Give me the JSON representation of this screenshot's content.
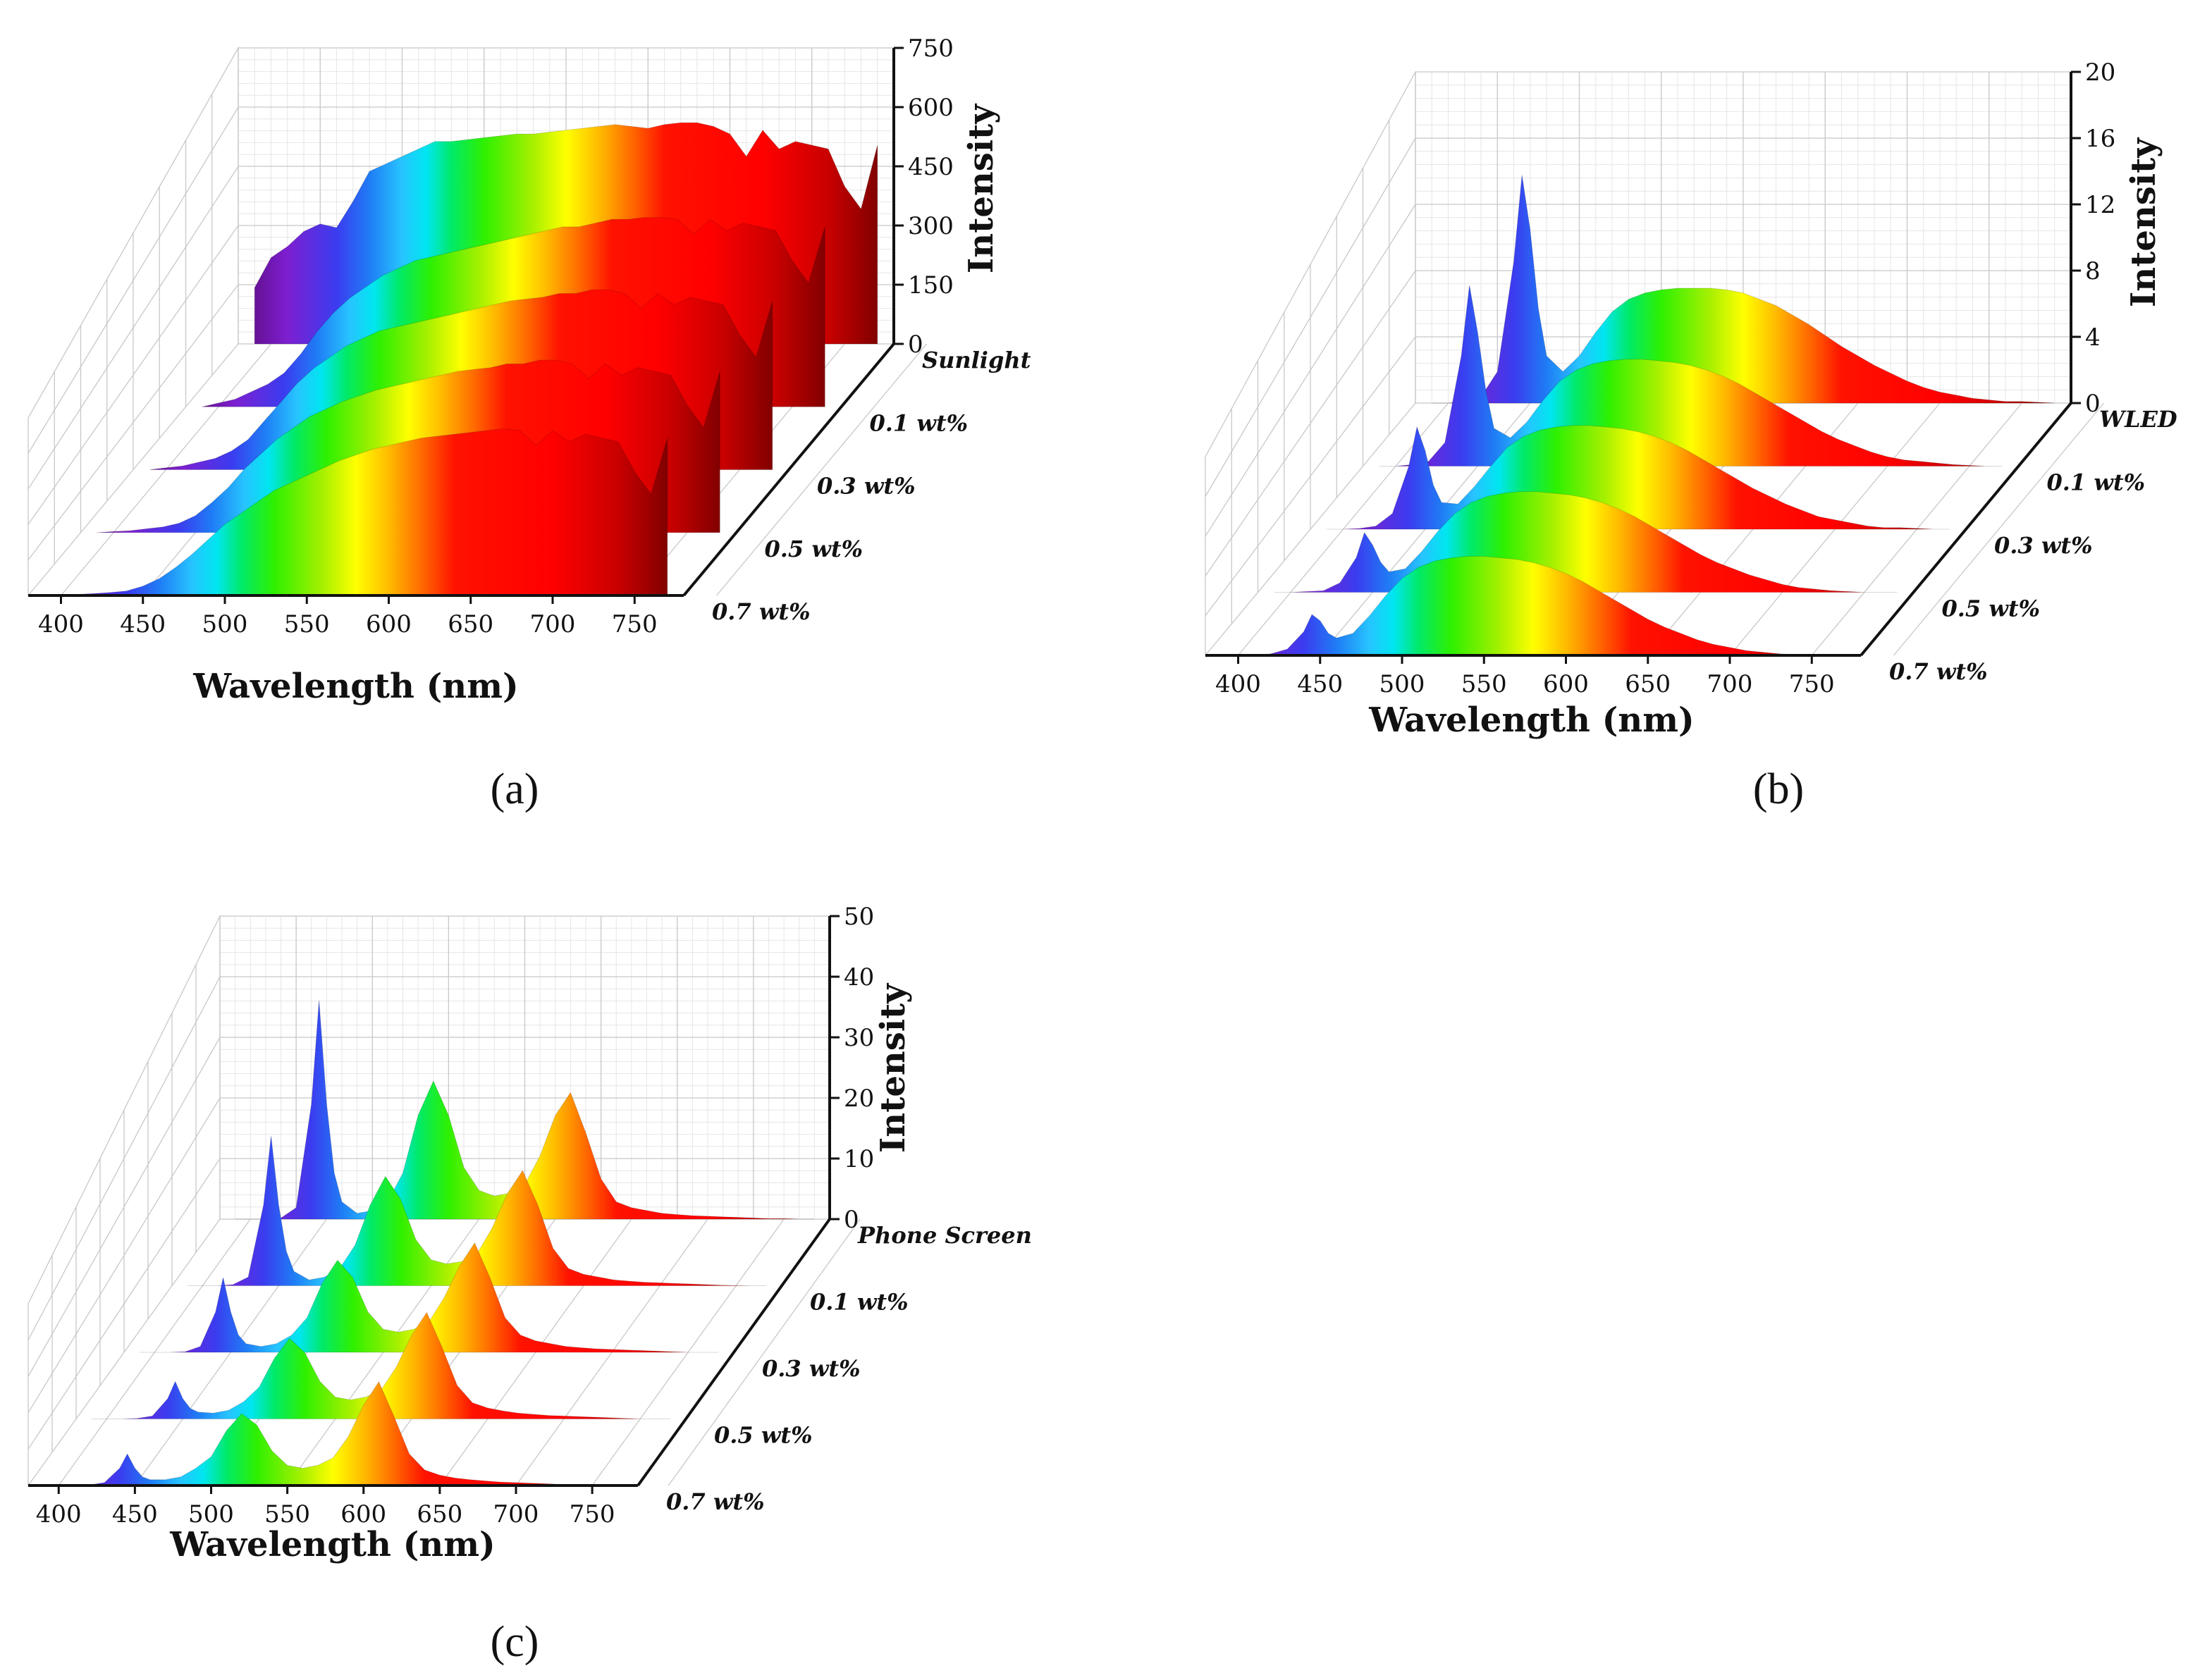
{
  "chart_data": [
    {
      "type": "area",
      "panel_label": "(a)",
      "title": "",
      "xlabel": "Wavelength (nm)",
      "ylabel": "Intensity",
      "xlim": [
        380,
        780
      ],
      "ylim": [
        0,
        750
      ],
      "x_ticks": [
        "400",
        "450",
        "500",
        "550",
        "600",
        "650",
        "700",
        "750"
      ],
      "y_ticks": [
        "0",
        "150",
        "300",
        "450",
        "600",
        "750"
      ],
      "series_labels": [
        "Sunlight",
        "0.1 wt%",
        "0.3 wt%",
        "0.5 wt%",
        "0.7 wt%"
      ],
      "x": [
        390,
        400,
        410,
        420,
        430,
        440,
        450,
        460,
        470,
        480,
        490,
        500,
        510,
        520,
        530,
        540,
        550,
        560,
        570,
        580,
        590,
        600,
        610,
        620,
        630,
        640,
        650,
        660,
        670,
        680,
        690,
        700,
        710,
        720,
        730,
        740,
        750,
        760,
        770
      ],
      "series": [
        {
          "name": "Sunlight",
          "values": [
            150,
            230,
            260,
            300,
            320,
            310,
            380,
            460,
            480,
            500,
            520,
            540,
            540,
            545,
            550,
            555,
            560,
            560,
            565,
            570,
            575,
            580,
            585,
            580,
            575,
            585,
            590,
            590,
            580,
            560,
            500,
            570,
            520,
            540,
            530,
            520,
            420,
            360,
            530
          ]
        },
        {
          "name": "0.1 wt%",
          "values": [
            0,
            10,
            20,
            40,
            60,
            90,
            140,
            200,
            250,
            290,
            320,
            350,
            370,
            390,
            400,
            410,
            420,
            430,
            440,
            450,
            460,
            470,
            480,
            480,
            490,
            500,
            500,
            505,
            505,
            500,
            460,
            500,
            470,
            490,
            480,
            470,
            390,
            330,
            480
          ]
        },
        {
          "name": "0.3 wt%",
          "values": [
            0,
            5,
            10,
            20,
            30,
            50,
            80,
            130,
            180,
            230,
            270,
            300,
            330,
            350,
            370,
            380,
            390,
            400,
            410,
            420,
            430,
            440,
            450,
            455,
            460,
            470,
            470,
            480,
            480,
            470,
            430,
            470,
            440,
            460,
            450,
            440,
            360,
            300,
            450
          ]
        },
        {
          "name": "0.5 wt%",
          "values": [
            0,
            3,
            5,
            10,
            15,
            25,
            45,
            80,
            120,
            170,
            210,
            250,
            280,
            310,
            330,
            350,
            365,
            380,
            390,
            400,
            410,
            420,
            430,
            435,
            440,
            450,
            450,
            460,
            460,
            450,
            410,
            450,
            420,
            440,
            430,
            420,
            340,
            280,
            430
          ]
        },
        {
          "name": "0.7 wt%",
          "values": [
            0,
            2,
            3,
            5,
            8,
            12,
            25,
            45,
            75,
            110,
            150,
            190,
            220,
            250,
            280,
            300,
            320,
            340,
            360,
            375,
            390,
            400,
            410,
            420,
            425,
            430,
            435,
            440,
            445,
            440,
            400,
            440,
            410,
            430,
            420,
            410,
            330,
            270,
            420
          ]
        }
      ]
    },
    {
      "type": "area",
      "panel_label": "(b)",
      "title": "",
      "xlabel": "Wavelength (nm)",
      "ylabel": "Intensity",
      "xlim": [
        380,
        780
      ],
      "ylim": [
        0,
        20
      ],
      "x_ticks": [
        "400",
        "450",
        "500",
        "550",
        "600",
        "650",
        "700",
        "750"
      ],
      "y_ticks": [
        "0",
        "4",
        "8",
        "12",
        "16",
        "20"
      ],
      "series_labels": [
        "WLED",
        "0.1 wt%",
        "0.3 wt%",
        "0.5 wt%",
        "0.7 wt%"
      ],
      "x": [
        390,
        400,
        410,
        420,
        430,
        440,
        445,
        450,
        455,
        460,
        470,
        480,
        490,
        500,
        510,
        520,
        530,
        540,
        550,
        560,
        570,
        580,
        590,
        600,
        610,
        620,
        630,
        640,
        650,
        660,
        670,
        680,
        690,
        700,
        710,
        720,
        730,
        740,
        750,
        760,
        770
      ],
      "series": [
        {
          "name": "WLED",
          "values": [
            0,
            0,
            0.1,
            0.4,
            2,
            9,
            14.5,
            11,
            6,
            3,
            2,
            3,
            4.5,
            5.8,
            6.6,
            7,
            7.2,
            7.3,
            7.3,
            7.3,
            7.2,
            7,
            6.6,
            6.2,
            5.6,
            5,
            4.3,
            3.6,
            3,
            2.4,
            1.9,
            1.4,
            1.0,
            0.7,
            0.5,
            0.3,
            0.2,
            0.1,
            0.1,
            0.05,
            0
          ]
        },
        {
          "name": "0.1 wt%",
          "values": [
            0,
            0,
            0.1,
            0.3,
            1.5,
            7,
            11.5,
            8.5,
            4.8,
            2.4,
            1.8,
            2.8,
            4.2,
            5.4,
            6.1,
            6.5,
            6.7,
            6.8,
            6.8,
            6.7,
            6.6,
            6.4,
            6.1,
            5.7,
            5.2,
            4.6,
            4,
            3.4,
            2.8,
            2.2,
            1.7,
            1.3,
            0.9,
            0.6,
            0.4,
            0.3,
            0.2,
            0.1,
            0.05,
            0,
            0
          ]
        },
        {
          "name": "0.3 wt%",
          "values": [
            0,
            0,
            0.05,
            0.2,
            1,
            4,
            6.5,
            5,
            2.8,
            1.7,
            1.6,
            2.7,
            4,
            5.2,
            5.9,
            6.3,
            6.5,
            6.6,
            6.6,
            6.5,
            6.4,
            6.2,
            5.9,
            5.5,
            5,
            4.4,
            3.8,
            3.2,
            2.6,
            2.1,
            1.6,
            1.2,
            0.8,
            0.6,
            0.4,
            0.2,
            0.1,
            0.1,
            0.05,
            0,
            0
          ]
        },
        {
          "name": "0.5 wt%",
          "values": [
            0,
            0,
            0.05,
            0.1,
            0.6,
            2.2,
            3.8,
            3,
            1.9,
            1.3,
            1.5,
            2.6,
            3.9,
            5,
            5.7,
            6.1,
            6.3,
            6.4,
            6.4,
            6.3,
            6.2,
            6,
            5.7,
            5.3,
            4.8,
            4.2,
            3.6,
            3,
            2.4,
            1.9,
            1.5,
            1.1,
            0.8,
            0.5,
            0.3,
            0.2,
            0.1,
            0.05,
            0,
            0,
            0
          ]
        },
        {
          "name": "0.7 wt%",
          "values": [
            0,
            0,
            0,
            0.1,
            0.4,
            1.5,
            2.6,
            2.2,
            1.4,
            1.1,
            1.4,
            2.5,
            3.8,
            4.9,
            5.6,
            6,
            6.2,
            6.3,
            6.3,
            6.2,
            6.1,
            5.9,
            5.6,
            5.2,
            4.7,
            4.1,
            3.5,
            2.9,
            2.3,
            1.8,
            1.4,
            1,
            0.7,
            0.5,
            0.3,
            0.2,
            0.1,
            0.05,
            0,
            0,
            0
          ]
        }
      ]
    },
    {
      "type": "area",
      "panel_label": "(c)",
      "title": "",
      "xlabel": "Wavelength (nm)",
      "ylabel": "Intensity",
      "xlim": [
        380,
        780
      ],
      "ylim": [
        0,
        50
      ],
      "x_ticks": [
        "400",
        "450",
        "500",
        "550",
        "600",
        "650",
        "700",
        "750"
      ],
      "y_ticks": [
        "0",
        "10",
        "20",
        "30",
        "40",
        "50"
      ],
      "series_labels": [
        "Phone Screen",
        "0.1 wt%",
        "0.3 wt%",
        "0.5 wt%",
        "0.7 wt%"
      ],
      "x": [
        390,
        400,
        410,
        420,
        430,
        440,
        445,
        450,
        455,
        460,
        470,
        480,
        490,
        500,
        510,
        520,
        530,
        540,
        550,
        560,
        570,
        580,
        590,
        600,
        610,
        620,
        630,
        640,
        650,
        660,
        670,
        680,
        690,
        700,
        710,
        720,
        730,
        740,
        750,
        760,
        770
      ],
      "series": [
        {
          "name": "Phone Screen",
          "values": [
            0,
            0,
            0,
            0.2,
            2,
            20,
            38,
            20,
            8,
            3,
            1,
            1.5,
            3,
            8,
            18,
            24,
            18,
            9,
            5,
            4,
            4.5,
            6,
            11,
            18,
            22,
            15,
            7,
            3,
            2,
            1.5,
            1,
            0.8,
            0.6,
            0.5,
            0.4,
            0.3,
            0.2,
            0.1,
            0.1,
            0,
            0
          ]
        },
        {
          "name": "0.1 wt%",
          "values": [
            0,
            0,
            0,
            0.2,
            1.5,
            14,
            26,
            14,
            6,
            2.5,
            1,
            1.5,
            3,
            7,
            14,
            19,
            15,
            8,
            4.5,
            3.8,
            4.2,
            5.5,
            10,
            16,
            20,
            14,
            6.5,
            3,
            2,
            1.5,
            1,
            0.8,
            0.6,
            0.5,
            0.4,
            0.3,
            0.2,
            0.1,
            0.05,
            0,
            0
          ]
        },
        {
          "name": "0.3 wt%",
          "values": [
            0,
            0,
            0,
            0.1,
            1,
            7,
            13,
            7,
            3,
            1.5,
            1,
            1.5,
            3,
            6,
            12,
            16,
            13,
            7,
            4,
            3.5,
            4,
            5.3,
            9.5,
            15,
            19,
            13,
            6,
            3,
            2,
            1.5,
            1,
            0.8,
            0.6,
            0.5,
            0.4,
            0.3,
            0.2,
            0.1,
            0,
            0,
            0
          ]
        },
        {
          "name": "0.5 wt%",
          "values": [
            0,
            0,
            0,
            0.1,
            0.5,
            3.5,
            6.5,
            3.5,
            1.8,
            1.2,
            1,
            1.5,
            3,
            5.5,
            10.5,
            14,
            11.5,
            6.5,
            3.8,
            3.3,
            3.8,
            5,
            9,
            14.5,
            18.5,
            12.5,
            5.8,
            2.8,
            1.9,
            1.4,
            1,
            0.8,
            0.6,
            0.5,
            0.4,
            0.3,
            0.2,
            0.1,
            0,
            0,
            0
          ]
        },
        {
          "name": "0.7 wt%",
          "values": [
            0,
            0,
            0,
            0.1,
            0.5,
            3,
            5.5,
            3,
            1.5,
            1,
            1,
            1.5,
            3,
            5,
            9.5,
            12.5,
            10.5,
            6,
            3.5,
            3,
            3.5,
            4.8,
            8.5,
            14,
            18,
            12,
            5.5,
            2.7,
            1.8,
            1.3,
            1,
            0.8,
            0.6,
            0.5,
            0.4,
            0.3,
            0.2,
            0.1,
            0,
            0,
            0
          ]
        }
      ]
    }
  ]
}
